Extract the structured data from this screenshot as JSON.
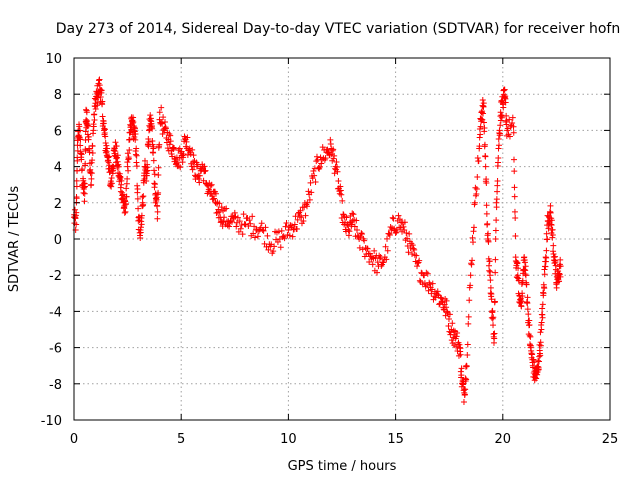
{
  "chart_data": {
    "type": "scatter",
    "title": "Day 273 of 2014, Sidereal Day-to-day VTEC variation (SDTVAR) for receiver hofn",
    "xlabel": "GPS time / hours",
    "ylabel": "SDTVAR / TECUs",
    "xlim": [
      0,
      25
    ],
    "ylim": [
      -10,
      10
    ],
    "xticks": [
      0,
      5,
      10,
      15,
      20,
      25
    ],
    "yticks": [
      -10,
      -8,
      -6,
      -4,
      -2,
      0,
      2,
      4,
      6,
      8,
      10
    ],
    "grid": true,
    "marker": "plus",
    "color": "#ff0000",
    "series": [
      {
        "name": "SDTVAR",
        "x": [
          0.0,
          0.1,
          0.15,
          0.2,
          0.3,
          0.4,
          0.5,
          0.55,
          0.6,
          0.7,
          0.8,
          0.9,
          1.0,
          1.1,
          1.2,
          1.3,
          1.4,
          1.5,
          1.6,
          1.7,
          1.8,
          1.9,
          2.0,
          2.1,
          2.2,
          2.3,
          2.4,
          2.5,
          2.6,
          2.7,
          2.8,
          2.9,
          3.0,
          3.1,
          3.2,
          3.3,
          3.4,
          3.5,
          3.6,
          3.7,
          3.8,
          3.9,
          4.0,
          4.2,
          4.4,
          4.6,
          4.8,
          5.0,
          5.2,
          5.4,
          5.6,
          5.8,
          6.0,
          6.2,
          6.4,
          6.6,
          6.8,
          7.0,
          7.3,
          7.6,
          8.0,
          8.4,
          8.8,
          9.2,
          9.6,
          10.0,
          10.3,
          10.6,
          10.9,
          11.2,
          11.5,
          11.8,
          12.0,
          12.2,
          12.4,
          12.6,
          12.8,
          13.0,
          13.3,
          13.6,
          13.9,
          14.2,
          14.5,
          14.8,
          15.1,
          15.4,
          15.7,
          16.0,
          16.3,
          16.6,
          16.9,
          17.2,
          17.4,
          17.6,
          17.8,
          18.0,
          18.1,
          18.2,
          18.3,
          18.5,
          18.7,
          18.9,
          19.0,
          19.1,
          19.2,
          19.3,
          19.4,
          19.5,
          19.6,
          19.7,
          19.8,
          19.9,
          20.0,
          20.1,
          20.2,
          20.5,
          20.6,
          20.7,
          20.8,
          20.9,
          21.0,
          21.1,
          21.2,
          21.3,
          21.4,
          21.5,
          21.6,
          21.7,
          21.8,
          21.9,
          22.0,
          22.1,
          22.2,
          22.3,
          22.4,
          22.5,
          22.6,
          22.7
        ],
        "y": [
          1.2,
          0.8,
          4.5,
          6.0,
          5.5,
          3.0,
          2.5,
          6.5,
          7.0,
          5.0,
          3.0,
          6.0,
          7.5,
          8.0,
          8.5,
          7.5,
          6.0,
          5.0,
          4.5,
          3.0,
          4.0,
          5.0,
          4.5,
          3.5,
          3.0,
          2.0,
          1.5,
          4.0,
          5.5,
          6.5,
          6.0,
          5.0,
          1.0,
          0.5,
          2.0,
          4.0,
          3.5,
          6.0,
          6.5,
          5.0,
          2.0,
          1.5,
          7.0,
          6.0,
          5.5,
          5.0,
          4.5,
          4.5,
          5.5,
          5.0,
          4.0,
          3.5,
          4.0,
          3.0,
          2.5,
          2.0,
          1.5,
          1.2,
          1.0,
          0.9,
          0.8,
          0.7,
          0.5,
          -0.3,
          0.0,
          0.5,
          0.8,
          1.2,
          2.0,
          3.5,
          4.5,
          4.8,
          5.0,
          4.0,
          2.5,
          0.8,
          0.5,
          1.0,
          0.0,
          -0.5,
          -1.0,
          -1.5,
          -1.0,
          0.5,
          1.0,
          0.5,
          -0.5,
          -1.5,
          -2.0,
          -2.5,
          -3.0,
          -3.5,
          -4.0,
          -5.0,
          -5.5,
          -6.0,
          -8.0,
          -8.5,
          -7.0,
          -2.0,
          2.0,
          5.0,
          7.0,
          7.3,
          4.0,
          0.0,
          -2.0,
          -4.0,
          -5.5,
          2.0,
          5.0,
          7.0,
          7.5,
          7.8,
          6.0,
          6.2,
          -1.0,
          -2.0,
          -3.5,
          -3.0,
          -1.0,
          -2.5,
          -4.5,
          -6.0,
          -7.0,
          -7.5,
          -7.5,
          -6.5,
          -5.0,
          -3.0,
          -1.0,
          1.0,
          1.5,
          0.5,
          -1.0,
          -2.5,
          -2.0,
          -1.5
        ]
      }
    ]
  }
}
